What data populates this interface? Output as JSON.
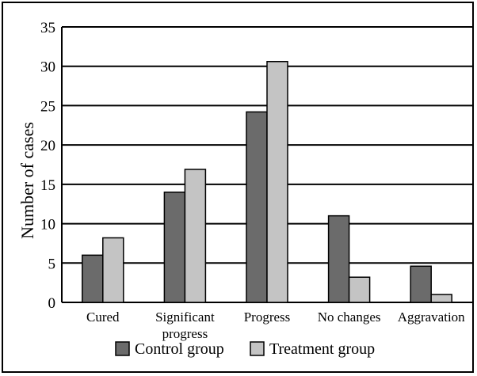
{
  "chart_data": {
    "type": "bar",
    "title": "",
    "xlabel": "",
    "ylabel": "Number of cases",
    "ylim": [
      0,
      35
    ],
    "yticks": [
      0,
      5,
      10,
      15,
      20,
      25,
      30,
      35
    ],
    "grid": true,
    "legend_position": "bottom",
    "categories": [
      "Cured",
      "Significant progress",
      "Progress",
      "No changes",
      "Aggravation"
    ],
    "category_lines": [
      [
        "Cured"
      ],
      [
        "Significant",
        "progress"
      ],
      [
        "Progress"
      ],
      [
        "No changes"
      ],
      [
        "Aggravation"
      ]
    ],
    "series": [
      {
        "name": "Control group",
        "values": [
          6,
          14,
          24.2,
          11,
          4.6
        ],
        "color": "#6b6b6b"
      },
      {
        "name": "Treatment group",
        "values": [
          8.2,
          16.9,
          30.6,
          3.2,
          1
        ],
        "color": "#c4c4c4"
      }
    ]
  }
}
